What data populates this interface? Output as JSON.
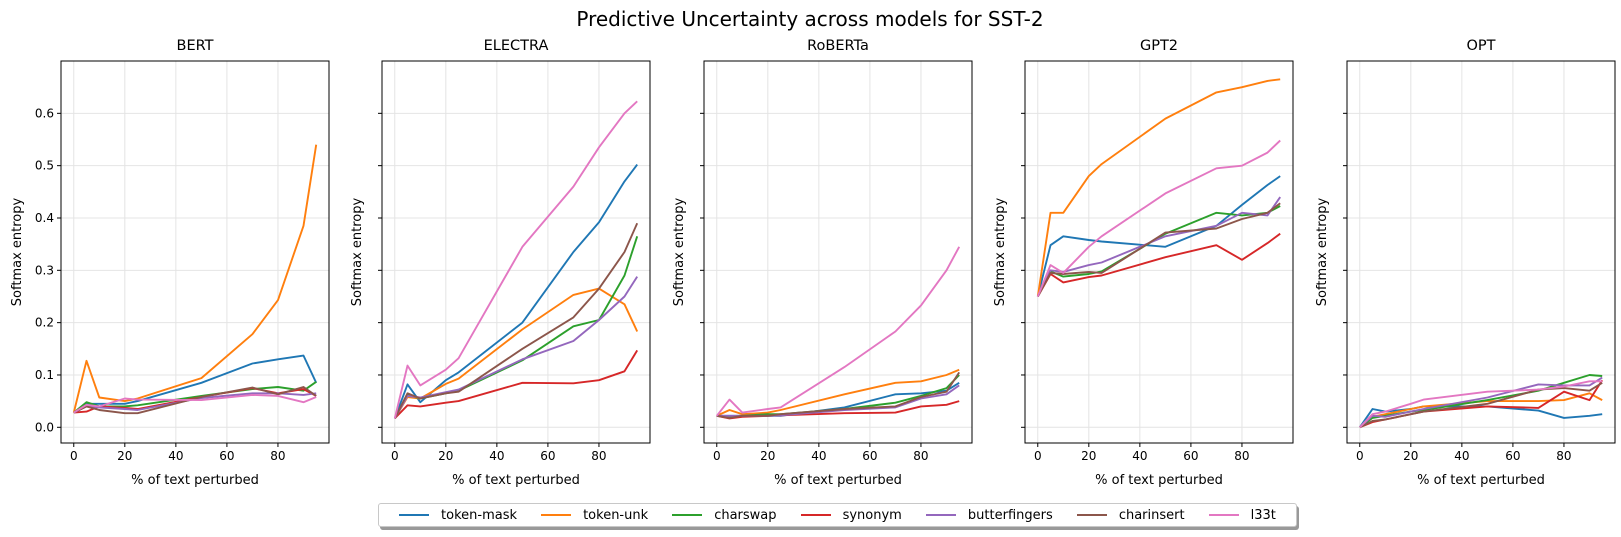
{
  "figure_title": "Predictive Uncertainty across models for SST-2",
  "series_names": [
    "token-mask",
    "token-unk",
    "charswap",
    "synonym",
    "butterfingers",
    "charinsert",
    "l33t"
  ],
  "colors": {
    "token-mask": "#1f77b4",
    "token-unk": "#ff7f0e",
    "charswap": "#2ca02c",
    "synonym": "#d62728",
    "butterfingers": "#9467bd",
    "charinsert": "#8c564b",
    "l33t": "#e377c2"
  },
  "chart_data": [
    {
      "type": "line",
      "title": "BERT",
      "xlabel": "% of text perturbed",
      "ylabel": "Softmax entropy",
      "xlim": [
        -5,
        100
      ],
      "ylim": [
        -0.03,
        0.7
      ],
      "xticks": [
        0,
        20,
        40,
        60,
        80
      ],
      "yticks": [
        0.0,
        0.1,
        0.2,
        0.3,
        0.4,
        0.5,
        0.6
      ],
      "grid": true,
      "show_ytick_labels": true,
      "x": [
        0,
        5,
        10,
        20,
        25,
        50,
        70,
        80,
        90,
        95
      ],
      "series": [
        {
          "name": "token-mask",
          "values": [
            0.028,
            0.045,
            0.045,
            0.045,
            0.05,
            0.085,
            0.122,
            0.13,
            0.137,
            0.085
          ]
        },
        {
          "name": "token-unk",
          "values": [
            0.028,
            0.127,
            0.057,
            0.05,
            0.055,
            0.094,
            0.178,
            0.243,
            0.385,
            0.54
          ]
        },
        {
          "name": "charswap",
          "values": [
            0.028,
            0.048,
            0.04,
            0.04,
            0.042,
            0.06,
            0.073,
            0.077,
            0.07,
            0.087
          ]
        },
        {
          "name": "synonym",
          "values": [
            0.028,
            0.03,
            0.04,
            0.037,
            0.035,
            0.058,
            0.075,
            0.065,
            0.073,
            0.06
          ]
        },
        {
          "name": "butterfingers",
          "values": [
            0.028,
            0.04,
            0.038,
            0.035,
            0.033,
            0.056,
            0.065,
            0.065,
            0.062,
            0.065
          ]
        },
        {
          "name": "charinsert",
          "values": [
            0.028,
            0.04,
            0.033,
            0.027,
            0.027,
            0.058,
            0.076,
            0.063,
            0.077,
            0.06
          ]
        },
        {
          "name": "l33t",
          "values": [
            0.028,
            0.043,
            0.04,
            0.055,
            0.053,
            0.052,
            0.062,
            0.06,
            0.048,
            0.058
          ]
        }
      ]
    },
    {
      "type": "line",
      "title": "ELECTRA",
      "xlabel": "% of text perturbed",
      "ylabel": "Softmax entropy",
      "xlim": [
        -5,
        100
      ],
      "ylim": [
        -0.03,
        0.7
      ],
      "xticks": [
        0,
        20,
        40,
        60,
        80
      ],
      "yticks": [
        0.0,
        0.1,
        0.2,
        0.3,
        0.4,
        0.5,
        0.6
      ],
      "grid": true,
      "show_ytick_labels": false,
      "x": [
        0,
        5,
        10,
        20,
        25,
        50,
        70,
        80,
        90,
        95
      ],
      "series": [
        {
          "name": "token-mask",
          "values": [
            0.017,
            0.082,
            0.048,
            0.09,
            0.105,
            0.2,
            0.335,
            0.392,
            0.47,
            0.502
          ]
        },
        {
          "name": "token-unk",
          "values": [
            0.017,
            0.058,
            0.055,
            0.083,
            0.093,
            0.187,
            0.253,
            0.265,
            0.235,
            0.183
          ]
        },
        {
          "name": "charswap",
          "values": [
            0.017,
            0.062,
            0.055,
            0.065,
            0.07,
            0.128,
            0.193,
            0.205,
            0.29,
            0.365
          ]
        },
        {
          "name": "synonym",
          "values": [
            0.017,
            0.042,
            0.04,
            0.047,
            0.05,
            0.085,
            0.084,
            0.09,
            0.107,
            0.147
          ]
        },
        {
          "name": "butterfingers",
          "values": [
            0.017,
            0.06,
            0.057,
            0.067,
            0.072,
            0.13,
            0.165,
            0.205,
            0.25,
            0.288
          ]
        },
        {
          "name": "charinsert",
          "values": [
            0.017,
            0.065,
            0.055,
            0.065,
            0.068,
            0.15,
            0.21,
            0.265,
            0.335,
            0.39
          ]
        },
        {
          "name": "l33t",
          "values": [
            0.017,
            0.118,
            0.08,
            0.11,
            0.132,
            0.345,
            0.46,
            0.535,
            0.6,
            0.623
          ]
        }
      ]
    },
    {
      "type": "line",
      "title": "RoBERTa",
      "xlabel": "% of text perturbed",
      "ylabel": "Softmax entropy",
      "xlim": [
        -5,
        100
      ],
      "ylim": [
        -0.03,
        0.7
      ],
      "xticks": [
        0,
        20,
        40,
        60,
        80
      ],
      "yticks": [
        0.0,
        0.1,
        0.2,
        0.3,
        0.4,
        0.5,
        0.6
      ],
      "grid": true,
      "show_ytick_labels": false,
      "x": [
        0,
        5,
        10,
        20,
        25,
        50,
        70,
        80,
        90,
        95
      ],
      "series": [
        {
          "name": "token-mask",
          "values": [
            0.022,
            0.022,
            0.022,
            0.022,
            0.022,
            0.038,
            0.063,
            0.065,
            0.07,
            0.085
          ]
        },
        {
          "name": "token-unk",
          "values": [
            0.022,
            0.033,
            0.025,
            0.028,
            0.033,
            0.063,
            0.085,
            0.088,
            0.1,
            0.11
          ]
        },
        {
          "name": "charswap",
          "values": [
            0.022,
            0.02,
            0.022,
            0.025,
            0.025,
            0.035,
            0.047,
            0.06,
            0.075,
            0.1
          ]
        },
        {
          "name": "synonym",
          "values": [
            0.022,
            0.017,
            0.02,
            0.022,
            0.023,
            0.027,
            0.028,
            0.04,
            0.043,
            0.05
          ]
        },
        {
          "name": "butterfingers",
          "values": [
            0.022,
            0.022,
            0.022,
            0.022,
            0.023,
            0.033,
            0.038,
            0.055,
            0.063,
            0.08
          ]
        },
        {
          "name": "charinsert",
          "values": [
            0.022,
            0.018,
            0.022,
            0.022,
            0.025,
            0.035,
            0.04,
            0.058,
            0.068,
            0.105
          ]
        },
        {
          "name": "l33t",
          "values": [
            0.022,
            0.053,
            0.028,
            0.035,
            0.038,
            0.115,
            0.183,
            0.233,
            0.3,
            0.345
          ]
        }
      ]
    },
    {
      "type": "line",
      "title": "GPT2",
      "xlabel": "% of text perturbed",
      "ylabel": "Softmax entropy",
      "xlim": [
        -5,
        100
      ],
      "ylim": [
        -0.03,
        0.7
      ],
      "xticks": [
        0,
        20,
        40,
        60,
        80
      ],
      "yticks": [
        0.0,
        0.1,
        0.2,
        0.3,
        0.4,
        0.5,
        0.6
      ],
      "grid": true,
      "show_ytick_labels": false,
      "x": [
        0,
        5,
        10,
        20,
        25,
        50,
        70,
        80,
        90,
        95
      ],
      "series": [
        {
          "name": "token-mask",
          "values": [
            0.25,
            0.348,
            0.365,
            0.358,
            0.355,
            0.345,
            0.385,
            0.425,
            0.463,
            0.48
          ]
        },
        {
          "name": "token-unk",
          "values": [
            0.25,
            0.41,
            0.41,
            0.48,
            0.503,
            0.59,
            0.64,
            0.65,
            0.662,
            0.665
          ]
        },
        {
          "name": "charswap",
          "values": [
            0.25,
            0.298,
            0.288,
            0.293,
            0.298,
            0.37,
            0.41,
            0.405,
            0.41,
            0.423
          ]
        },
        {
          "name": "synonym",
          "values": [
            0.25,
            0.293,
            0.277,
            0.287,
            0.29,
            0.325,
            0.348,
            0.32,
            0.352,
            0.37
          ]
        },
        {
          "name": "butterfingers",
          "values": [
            0.25,
            0.3,
            0.297,
            0.31,
            0.315,
            0.365,
            0.385,
            0.41,
            0.405,
            0.44
          ]
        },
        {
          "name": "charinsert",
          "values": [
            0.25,
            0.295,
            0.293,
            0.297,
            0.295,
            0.372,
            0.38,
            0.398,
            0.41,
            0.428
          ]
        },
        {
          "name": "l33t",
          "values": [
            0.25,
            0.31,
            0.295,
            0.345,
            0.365,
            0.447,
            0.495,
            0.5,
            0.525,
            0.548
          ]
        }
      ]
    },
    {
      "type": "line",
      "title": "OPT",
      "xlabel": "% of text perturbed",
      "ylabel": "Softmax entropy",
      "xlim": [
        -5,
        100
      ],
      "ylim": [
        -0.03,
        0.7
      ],
      "xticks": [
        0,
        20,
        40,
        60,
        80
      ],
      "yticks": [
        0.0,
        0.1,
        0.2,
        0.3,
        0.4,
        0.5,
        0.6
      ],
      "grid": true,
      "show_ytick_labels": false,
      "x": [
        0,
        5,
        10,
        20,
        25,
        50,
        70,
        80,
        90,
        95
      ],
      "series": [
        {
          "name": "token-mask",
          "values": [
            0.0,
            0.035,
            0.03,
            0.035,
            0.04,
            0.04,
            0.032,
            0.018,
            0.022,
            0.025
          ]
        },
        {
          "name": "token-unk",
          "values": [
            0.0,
            0.02,
            0.025,
            0.035,
            0.04,
            0.05,
            0.05,
            0.052,
            0.065,
            0.052
          ]
        },
        {
          "name": "charswap",
          "values": [
            0.0,
            0.018,
            0.022,
            0.03,
            0.033,
            0.052,
            0.07,
            0.085,
            0.1,
            0.098
          ]
        },
        {
          "name": "synonym",
          "values": [
            0.0,
            0.01,
            0.015,
            0.025,
            0.03,
            0.04,
            0.037,
            0.068,
            0.052,
            0.09
          ]
        },
        {
          "name": "butterfingers",
          "values": [
            0.0,
            0.022,
            0.02,
            0.03,
            0.035,
            0.057,
            0.082,
            0.08,
            0.08,
            0.095
          ]
        },
        {
          "name": "charinsert",
          "values": [
            0.0,
            0.012,
            0.015,
            0.025,
            0.03,
            0.045,
            0.072,
            0.075,
            0.07,
            0.085
          ]
        },
        {
          "name": "l33t",
          "values": [
            0.0,
            0.025,
            0.03,
            0.045,
            0.053,
            0.068,
            0.072,
            0.078,
            0.088,
            0.088
          ]
        }
      ]
    }
  ]
}
